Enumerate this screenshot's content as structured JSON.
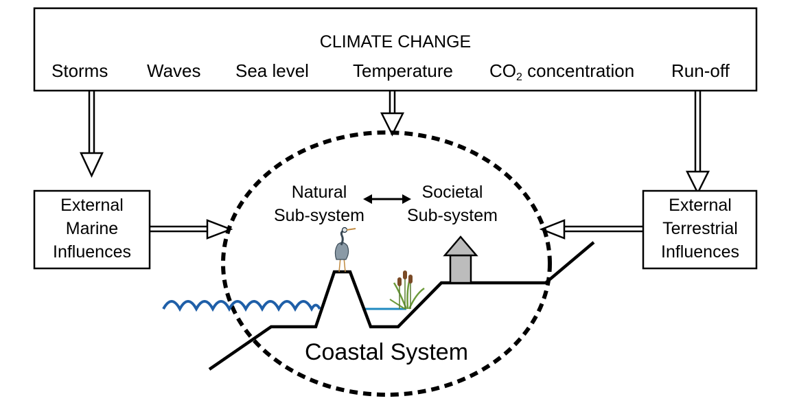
{
  "climate_change": {
    "title": "CLIMATE CHANGE",
    "drivers": {
      "storms": "Storms",
      "waves": "Waves",
      "sea_level": "Sea level",
      "temperature": "Temperature",
      "co2_main": "CO",
      "co2_sub": "2",
      "co2_rest": " concentration",
      "runoff": "Run-off"
    }
  },
  "marine": {
    "line1": "External",
    "line2": "Marine",
    "line3": "Influences"
  },
  "terrestrial": {
    "line1": "External",
    "line2": "Terrestrial",
    "line3": "Influences"
  },
  "natural": {
    "line1": "Natural",
    "line2": "Sub-system"
  },
  "societal": {
    "line1": "Societal",
    "line2": "Sub-system"
  },
  "coastal_system": "Coastal System",
  "colors": {
    "water": "#1f5fa8",
    "house_fill": "#bcbcbc",
    "heron": "#7a8c99",
    "reed": "#6c9a3a",
    "cattail": "#7a4a26"
  }
}
